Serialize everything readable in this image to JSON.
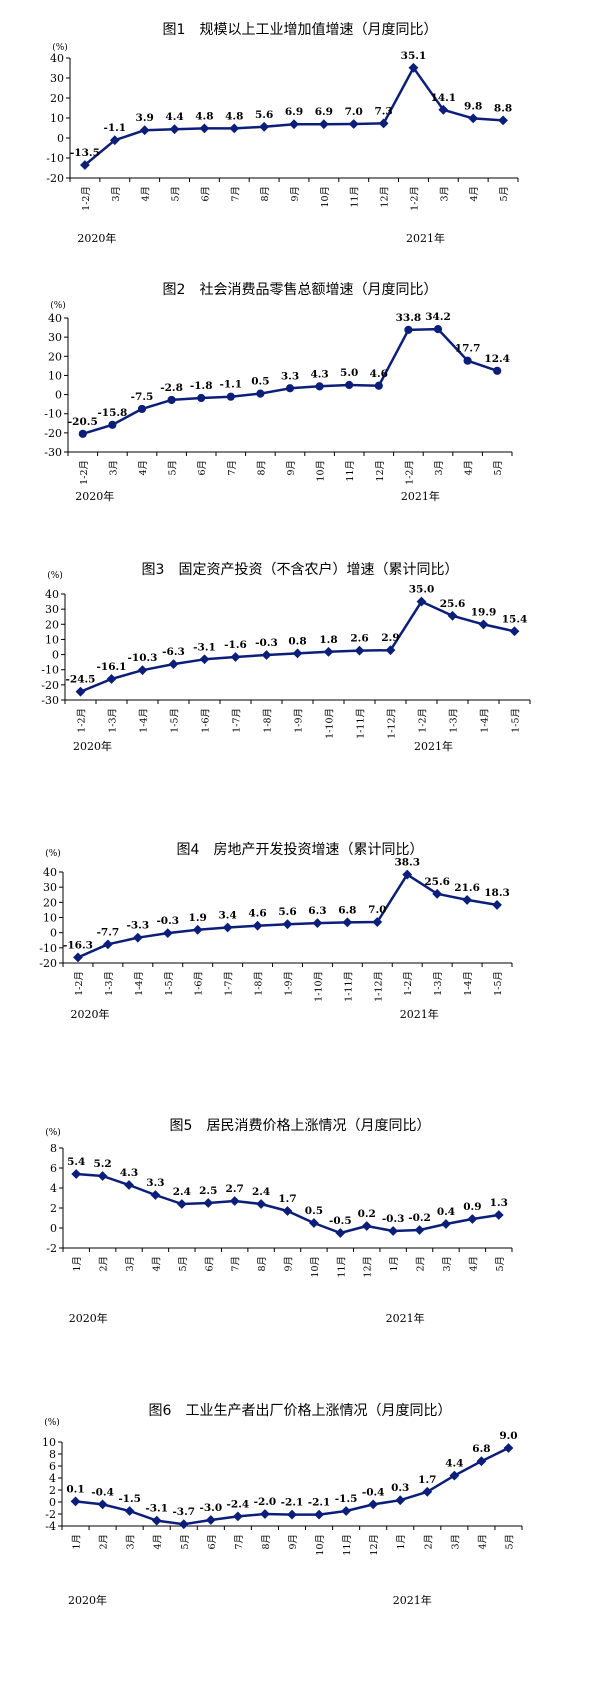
{
  "chart_data": [
    {
      "type": "line",
      "title": "图1　规模以上工业增加值增速（月度同比）",
      "unit": "(%)",
      "categories": [
        "1-2月",
        "3月",
        "4月",
        "5月",
        "6月",
        "7月",
        "8月",
        "9月",
        "10月",
        "11月",
        "12月",
        "1-2月",
        "3月",
        "4月",
        "5月"
      ],
      "year_labels": [
        {
          "label": "2020年",
          "index": 0
        },
        {
          "label": "2021年",
          "index": 11
        }
      ],
      "values": [
        -13.5,
        -1.1,
        3.9,
        4.4,
        4.8,
        4.8,
        5.6,
        6.9,
        6.9,
        7.0,
        7.3,
        35.1,
        14.1,
        9.8,
        8.8
      ],
      "labels": [
        "-13.5",
        "-1.1",
        "3.9",
        "4.4",
        "4.8",
        "4.8",
        "5.6",
        "6.9",
        "6.9",
        "7.0",
        "7.3",
        "35.1",
        "14.1",
        "9.8",
        "8.8"
      ],
      "ylim": [
        -20,
        40
      ],
      "yticks": [
        -20,
        -10,
        0,
        10,
        20,
        30,
        40
      ],
      "grid": false,
      "marker": "diamond"
    },
    {
      "type": "line",
      "title": "图2　社会消费品零售总额增速（月度同比）",
      "unit": "(%)",
      "categories": [
        "1-2月",
        "3月",
        "4月",
        "5月",
        "6月",
        "7月",
        "8月",
        "9月",
        "10月",
        "11月",
        "12月",
        "1-2月",
        "3月",
        "4月",
        "5月"
      ],
      "year_labels": [
        {
          "label": "2020年",
          "index": 0
        },
        {
          "label": "2021年",
          "index": 11
        }
      ],
      "values": [
        -20.5,
        -15.8,
        -7.5,
        -2.8,
        -1.8,
        -1.1,
        0.5,
        3.3,
        4.3,
        5.0,
        4.6,
        33.8,
        34.2,
        17.7,
        12.4
      ],
      "labels": [
        "-20.5",
        "-15.8",
        "-7.5",
        "-2.8",
        "-1.8",
        "-1.1",
        "0.5",
        "3.3",
        "4.3",
        "5.0",
        "4.6",
        "33.8",
        "34.2",
        "17.7",
        "12.4"
      ],
      "ylim": [
        -30,
        40
      ],
      "yticks": [
        -30,
        -20,
        -10,
        0,
        10,
        20,
        30,
        40
      ],
      "grid": false,
      "marker": "circle"
    },
    {
      "type": "line",
      "title": "图3　固定资产投资（不含农户）增速（累计同比）",
      "unit": "(%)",
      "categories": [
        "1-2月",
        "1-3月",
        "1-4月",
        "1-5月",
        "1-6月",
        "1-7月",
        "1-8月",
        "1-9月",
        "1-10月",
        "1-11月",
        "1-12月",
        "1-2月",
        "1-3月",
        "1-4月",
        "1-5月"
      ],
      "year_labels": [
        {
          "label": "2020年",
          "index": 0
        },
        {
          "label": "2021年",
          "index": 11
        }
      ],
      "values": [
        -24.5,
        -16.1,
        -10.3,
        -6.3,
        -3.1,
        -1.6,
        -0.3,
        0.8,
        1.8,
        2.6,
        2.9,
        35.0,
        25.6,
        19.9,
        15.4
      ],
      "labels": [
        "-24.5",
        "-16.1",
        "-10.3",
        "-6.3",
        "-3.1",
        "-1.6",
        "-0.3",
        "0.8",
        "1.8",
        "2.6",
        "2.9",
        "35.0",
        "25.6",
        "19.9",
        "15.4"
      ],
      "ylim": [
        -30,
        40
      ],
      "yticks": [
        -30,
        -20,
        -10,
        0,
        10,
        20,
        30,
        40
      ],
      "grid": false,
      "marker": "diamond"
    },
    {
      "type": "line",
      "title": "图4　房地产开发投资增速（累计同比）",
      "unit": "(%)",
      "categories": [
        "1-2月",
        "1-3月",
        "1-4月",
        "1-5月",
        "1-6月",
        "1-7月",
        "1-8月",
        "1-9月",
        "1-10月",
        "1-11月",
        "1-12月",
        "1-2月",
        "1-3月",
        "1-4月",
        "1-5月"
      ],
      "year_labels": [
        {
          "label": "2020年",
          "index": 0
        },
        {
          "label": "2021年",
          "index": 11
        }
      ],
      "values": [
        -16.3,
        -7.7,
        -3.3,
        -0.3,
        1.9,
        3.4,
        4.6,
        5.6,
        6.3,
        6.8,
        7.0,
        38.3,
        25.6,
        21.6,
        18.3
      ],
      "labels": [
        "-16.3",
        "-7.7",
        "-3.3",
        "-0.3",
        "1.9",
        "3.4",
        "4.6",
        "5.6",
        "6.3",
        "6.8",
        "7.0",
        "38.3",
        "25.6",
        "21.6",
        "18.3"
      ],
      "ylim": [
        -20,
        40
      ],
      "yticks": [
        -20,
        -10,
        0,
        10,
        20,
        30,
        40
      ],
      "grid": false,
      "marker": "diamond"
    },
    {
      "type": "line",
      "title": "图5　居民消费价格上涨情况（月度同比）",
      "unit": "(%)",
      "categories": [
        "1月",
        "2月",
        "3月",
        "4月",
        "5月",
        "6月",
        "7月",
        "8月",
        "9月",
        "10月",
        "11月",
        "12月",
        "1月",
        "2月",
        "3月",
        "4月",
        "5月"
      ],
      "year_labels": [
        {
          "label": "2020年",
          "index": 0
        },
        {
          "label": "2021年",
          "index": 12
        }
      ],
      "values": [
        5.4,
        5.2,
        4.3,
        3.3,
        2.4,
        2.5,
        2.7,
        2.4,
        1.7,
        0.5,
        -0.5,
        0.2,
        -0.3,
        -0.2,
        0.4,
        0.9,
        1.3
      ],
      "labels": [
        "5.4",
        "5.2",
        "4.3",
        "3.3",
        "2.4",
        "2.5",
        "2.7",
        "2.4",
        "1.7",
        "0.5",
        "-0.5",
        "0.2",
        "-0.3",
        "-0.2",
        "0.4",
        "0.9",
        "1.3"
      ],
      "ylim": [
        -2,
        8
      ],
      "yticks": [
        -2,
        0,
        2,
        4,
        6,
        8
      ],
      "grid": false,
      "marker": "diamond"
    },
    {
      "type": "line",
      "title": "图6　工业生产者出厂价格上涨情况（月度同比）",
      "unit": "(%)",
      "categories": [
        "1月",
        "2月",
        "3月",
        "4月",
        "5月",
        "6月",
        "7月",
        "8月",
        "9月",
        "10月",
        "11月",
        "12月",
        "1月",
        "2月",
        "3月",
        "4月",
        "5月"
      ],
      "year_labels": [
        {
          "label": "2020年",
          "index": 0
        },
        {
          "label": "2021年",
          "index": 12
        }
      ],
      "values": [
        0.1,
        -0.4,
        -1.5,
        -3.1,
        -3.7,
        -3.0,
        -2.4,
        -2.0,
        -2.1,
        -2.1,
        -1.5,
        -0.4,
        0.3,
        1.7,
        4.4,
        6.8,
        9.0
      ],
      "labels": [
        "0.1",
        "-0.4",
        "-1.5",
        "-3.1",
        "-3.7",
        "-3.0",
        "-2.4",
        "-2.0",
        "-2.1",
        "-2.1",
        "-1.5",
        "-0.4",
        "0.3",
        "1.7",
        "4.4",
        "6.8",
        "9.0"
      ],
      "ylim": [
        -4,
        10
      ],
      "yticks": [
        -4,
        -2,
        0,
        2,
        4,
        6,
        8,
        10
      ],
      "grid": false,
      "marker": "diamond"
    }
  ]
}
